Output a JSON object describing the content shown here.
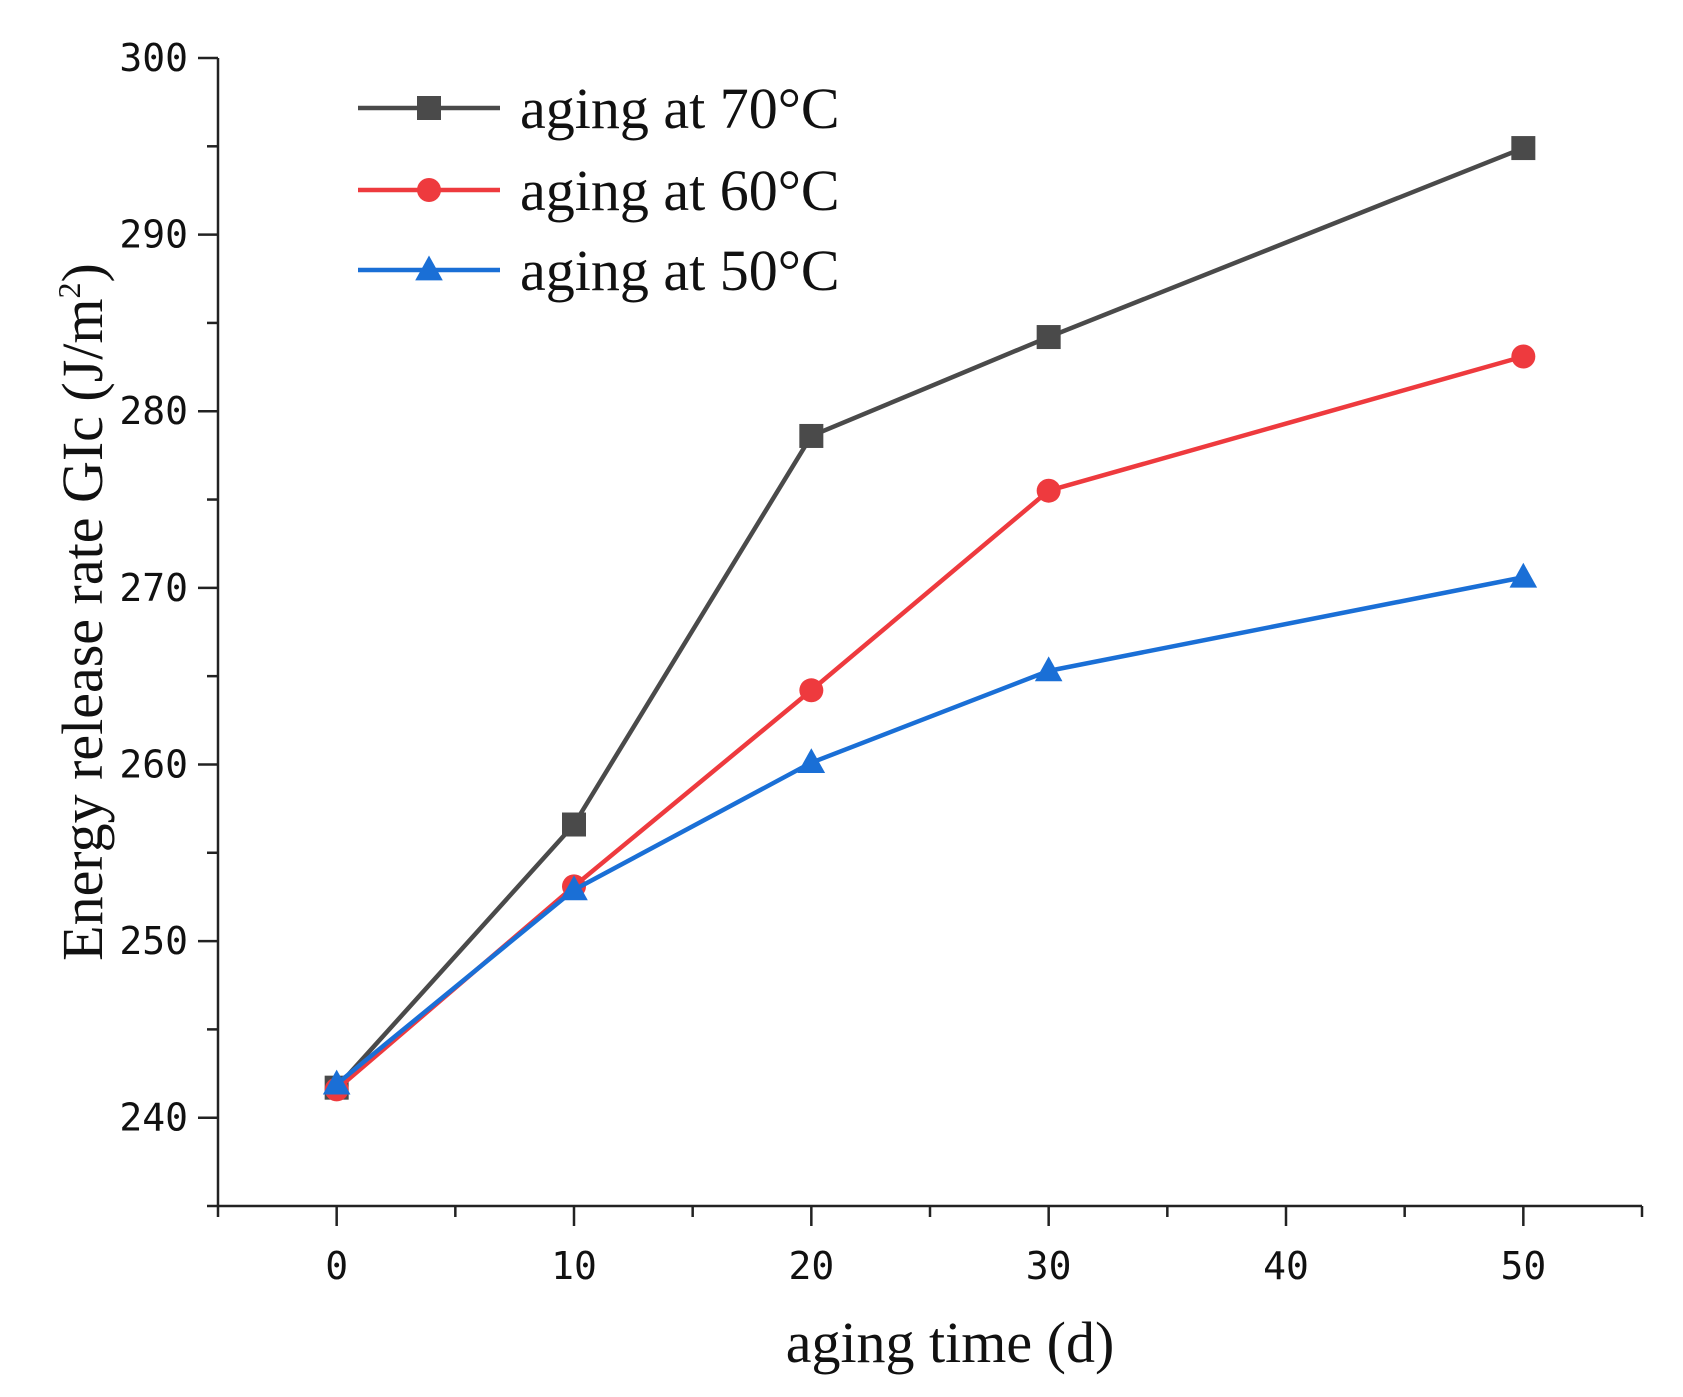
{
  "chart_data": {
    "type": "line",
    "title": "",
    "xlabel": "aging time (d)",
    "ylabel": "Energy release rate GIc (J/m²)",
    "ylabel_main": "Energy release rate GIc (J/m",
    "ylabel_sup": "2",
    "ylabel_end": ")",
    "xlim": [
      -5,
      55
    ],
    "ylim": [
      235,
      300
    ],
    "x_ticks": [
      0,
      10,
      20,
      30,
      40,
      50
    ],
    "y_ticks": [
      240,
      250,
      260,
      270,
      280,
      290,
      300
    ],
    "x_minor_ticks": [
      -5,
      5,
      15,
      25,
      35,
      45,
      55
    ],
    "y_minor_ticks": [
      235,
      245,
      255,
      265,
      275,
      285,
      295
    ],
    "grid": false,
    "legend_position": "top-left",
    "x": [
      0,
      10,
      20,
      30,
      50
    ],
    "series": [
      {
        "name": "aging at 70°C",
        "values": [
          241.7,
          256.6,
          278.6,
          284.2,
          294.9
        ],
        "color": "#4a4a4a",
        "marker": "square"
      },
      {
        "name": "aging at 60°C",
        "values": [
          241.6,
          253.1,
          264.2,
          275.5,
          283.1
        ],
        "color": "#ee3a3e",
        "marker": "circle"
      },
      {
        "name": "aging at 50°C",
        "values": [
          241.9,
          252.9,
          260.1,
          265.3,
          270.6
        ],
        "color": "#1a6fd6",
        "marker": "triangle"
      }
    ]
  }
}
